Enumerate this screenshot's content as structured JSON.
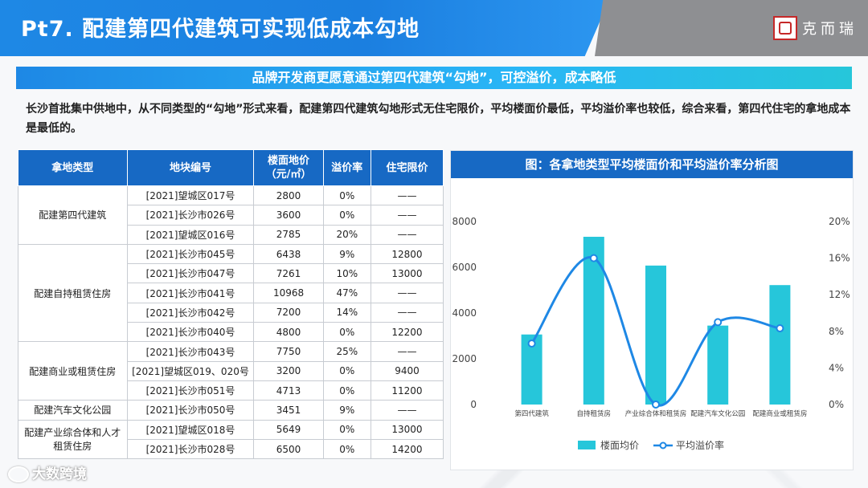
{
  "header": {
    "title": "Pt7. 配建第四代建筑可实现低成本勾地",
    "logo_text": "克而瑞",
    "accent_color": "#1e88e5"
  },
  "subtitle": "品牌开发商更愿意通过第四代建筑“勾地”，可控溢价，成本略低",
  "description": "长沙首批集中供地中，从不同类型的“勾地”形式来看，配建第四代建筑勾地形式无住宅限价，平均楼面价最低，平均溢价率也较低，综合来看，第四代住宅的拿地成本是最低的。",
  "table": {
    "headers": [
      "拿地类型",
      "地块编号",
      "楼面地价（元/㎡）",
      "溢价率",
      "住宅限价"
    ],
    "groups": [
      {
        "type": "配建第四代建筑",
        "rows": [
          [
            "[2021]望城区017号",
            "2800",
            "0%",
            "——"
          ],
          [
            "[2021]长沙市026号",
            "3600",
            "0%",
            "——"
          ],
          [
            "[2021]望城区016号",
            "2785",
            "20%",
            "——"
          ]
        ]
      },
      {
        "type": "配建自持租赁住房",
        "rows": [
          [
            "[2021]长沙市045号",
            "6438",
            "9%",
            "12800"
          ],
          [
            "[2021]长沙市047号",
            "7261",
            "10%",
            "13000"
          ],
          [
            "[2021]长沙市041号",
            "10968",
            "47%",
            "——"
          ],
          [
            "[2021]长沙市042号",
            "7200",
            "14%",
            "——"
          ],
          [
            "[2021]长沙市040号",
            "4800",
            "0%",
            "12200"
          ]
        ]
      },
      {
        "type": "配建商业或租赁住房",
        "rows": [
          [
            "[2021]长沙市043号",
            "7750",
            "25%",
            "——"
          ],
          [
            "[2021]望城区019、020号",
            "3200",
            "0%",
            "9400"
          ],
          [
            "[2021]长沙市051号",
            "4713",
            "0%",
            "11200"
          ]
        ]
      },
      {
        "type": "配建汽车文化公园",
        "rows": [
          [
            "[2021]长沙市050号",
            "3451",
            "9%",
            "——"
          ]
        ]
      },
      {
        "type": "配建产业综合体和人才租赁住房",
        "rows": [
          [
            "[2021]望城区018号",
            "5649",
            "0%",
            "13000"
          ],
          [
            "[2021]长沙市028号",
            "6500",
            "0%",
            "14200"
          ]
        ]
      }
    ]
  },
  "chart_title": "图：各拿地类型平均楼面价和平均溢价率分析图",
  "chart_data": {
    "type": "bar",
    "title": "图：各拿地类型平均楼面价和平均溢价率分析图",
    "categories": [
      "第四代建筑",
      "自持租赁房",
      "产业综合体和租赁房",
      "配建汽车文化公园",
      "配建商业或租赁房"
    ],
    "series": [
      {
        "name": "楼面均价",
        "type": "bar",
        "axis": "left",
        "color": "#26c6da",
        "values": [
          3062,
          7333,
          6075,
          3451,
          5221
        ]
      },
      {
        "name": "平均溢价率",
        "type": "line",
        "axis": "right",
        "color": "#1e88e5",
        "values": [
          6.67,
          16.0,
          0.0,
          9.0,
          8.33
        ]
      }
    ],
    "y_left": {
      "min": 0,
      "max": 8000,
      "ticks": [
        "0",
        "2000",
        "4000",
        "6000",
        "8000"
      ]
    },
    "y_right": {
      "min": 0,
      "max": 20,
      "ticks": [
        "0%",
        "4%",
        "8%",
        "12%",
        "16%",
        "20%"
      ]
    },
    "legend_position": "bottom",
    "grid": false
  },
  "watermark": "大数跨境"
}
